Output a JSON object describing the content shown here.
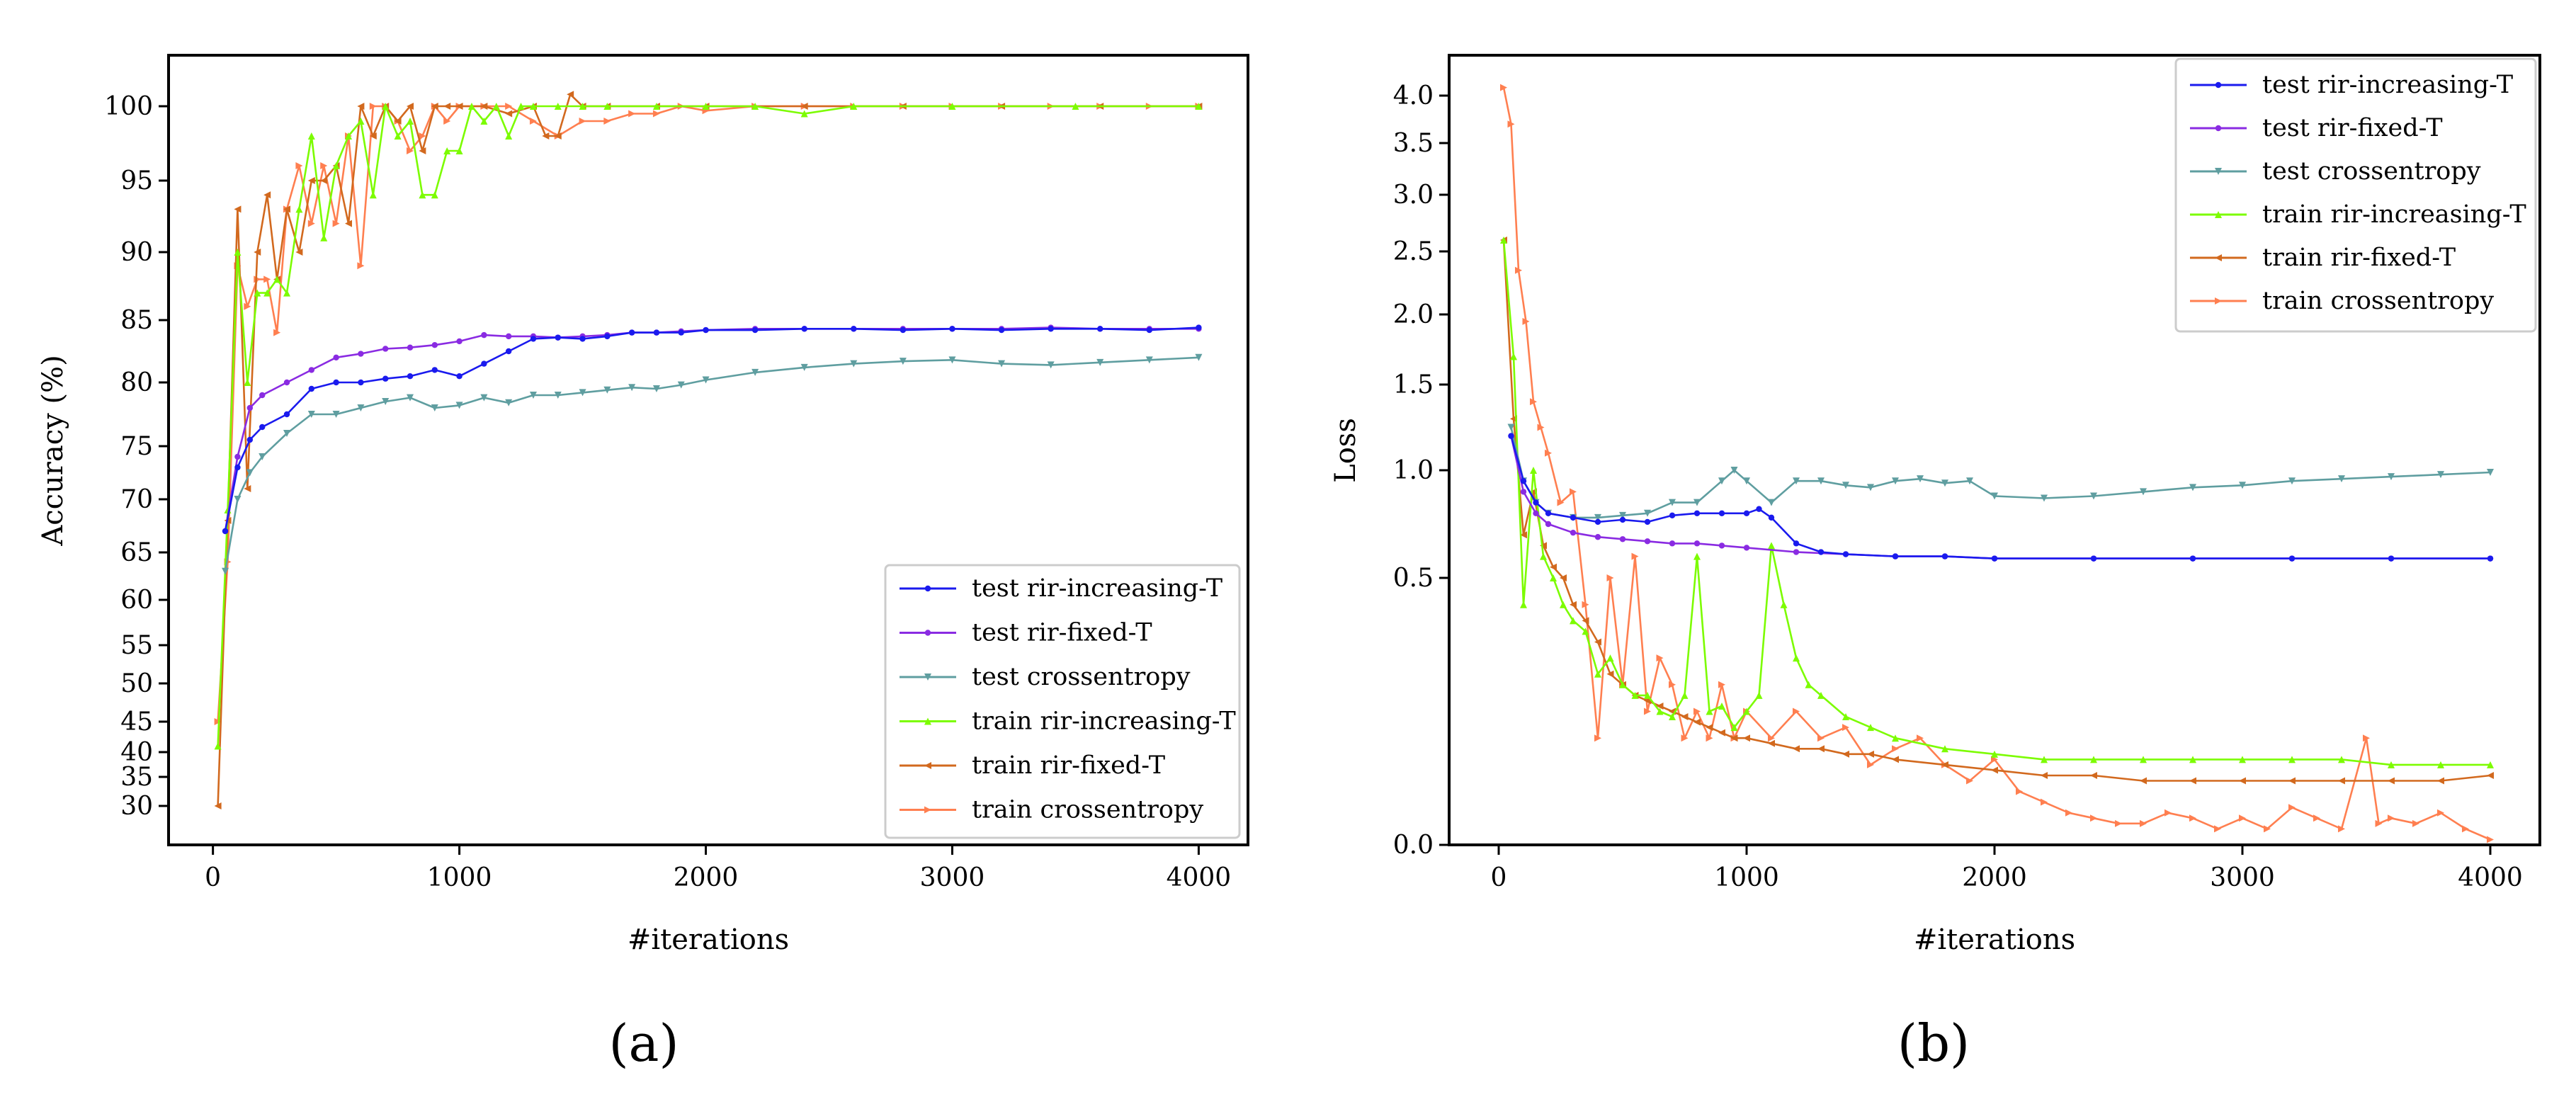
{
  "captions": [
    "(a)",
    "(b)"
  ],
  "colors": {
    "test_increasing": "#1a1aee",
    "test_fixed": "#8a2be2",
    "test_ce": "#5f9ea0",
    "train_increasing": "#7cfc00",
    "train_fixed": "#d2691e",
    "train_ce": "#ff7f50"
  },
  "chart_data": [
    {
      "type": "line",
      "panel": "(a)",
      "xlabel": "#iterations",
      "ylabel": "Accuracy (%)",
      "xlim": [
        -180,
        4200
      ],
      "ylim": [
        26.5,
        104.3
      ],
      "x_ticks": [
        0,
        1000,
        2000,
        3000,
        4000
      ],
      "x_tick_labels": [
        "0",
        "1000",
        "2000",
        "3000",
        "4000"
      ],
      "y_ticks": [
        30,
        35,
        40,
        45,
        50,
        55,
        60,
        65,
        70,
        75,
        80,
        85,
        90,
        95,
        100
      ],
      "y_tick_labels": [
        "30",
        "35",
        "40",
        "45",
        "50",
        "55",
        "60",
        "65",
        "70",
        "75",
        "80",
        "85",
        "90",
        "95",
        "100"
      ],
      "y_scale": "nonlinear (compressed below 65)",
      "legend_position": "lower-right",
      "series": [
        {
          "name": "test rir-increasing-T",
          "color_key": "test_increasing",
          "marker": "dot",
          "x": [
            50,
            100,
            150,
            200,
            300,
            400,
            500,
            600,
            700,
            800,
            900,
            1000,
            1100,
            1200,
            1300,
            1400,
            1500,
            1600,
            1700,
            1800,
            1900,
            2000,
            2200,
            2400,
            2600,
            2800,
            3000,
            3200,
            3400,
            3600,
            3800,
            4000
          ],
          "y": [
            67,
            73,
            75.5,
            76.5,
            77.5,
            79.5,
            80,
            80,
            80.3,
            80.5,
            81,
            80.5,
            81.5,
            82.5,
            83.5,
            83.6,
            83.5,
            83.7,
            84,
            84,
            84,
            84.2,
            84.2,
            84.3,
            84.3,
            84.2,
            84.3,
            84.2,
            84.3,
            84.3,
            84.2,
            84.4
          ]
        },
        {
          "name": "test rir-fixed-T",
          "color_key": "test_fixed",
          "marker": "dot",
          "x": [
            50,
            100,
            150,
            200,
            300,
            400,
            500,
            600,
            700,
            800,
            900,
            1000,
            1100,
            1200,
            1300,
            1400,
            1500,
            1600,
            1700,
            1800,
            1900,
            2000,
            2200,
            2400,
            2600,
            2800,
            3000,
            3200,
            3400,
            3600,
            3800,
            4000
          ],
          "y": [
            67,
            74,
            78,
            79,
            80,
            81,
            82,
            82.3,
            82.7,
            82.8,
            83,
            83.3,
            83.8,
            83.7,
            83.7,
            83.6,
            83.7,
            83.8,
            84,
            84,
            84.1,
            84.2,
            84.3,
            84.3,
            84.3,
            84.3,
            84.3,
            84.3,
            84.4,
            84.3,
            84.3,
            84.3
          ]
        },
        {
          "name": "test crossentropy",
          "color_key": "test_ce",
          "marker": "triangle-down",
          "x": [
            50,
            100,
            150,
            200,
            300,
            400,
            500,
            600,
            700,
            800,
            900,
            1000,
            1100,
            1200,
            1300,
            1400,
            1500,
            1600,
            1700,
            1800,
            1900,
            2000,
            2200,
            2400,
            2600,
            2800,
            3000,
            3200,
            3400,
            3600,
            3800,
            4000
          ],
          "y": [
            63,
            70,
            72.5,
            74,
            76,
            77.5,
            77.5,
            78,
            78.5,
            78.8,
            78,
            78.2,
            78.8,
            78.4,
            79,
            79,
            79.2,
            79.4,
            79.6,
            79.5,
            79.8,
            80.2,
            80.8,
            81.2,
            81.5,
            81.7,
            81.8,
            81.5,
            81.4,
            81.6,
            81.8,
            82
          ]
        },
        {
          "name": "train rir-increasing-T",
          "color_key": "train_increasing",
          "marker": "triangle-up",
          "x": [
            20,
            60,
            100,
            140,
            180,
            220,
            260,
            300,
            350,
            400,
            450,
            500,
            550,
            600,
            650,
            700,
            750,
            800,
            850,
            900,
            950,
            1000,
            1050,
            1100,
            1150,
            1200,
            1250,
            1300,
            1400,
            1500,
            1600,
            1800,
            2000,
            2200,
            2400,
            2600,
            3000,
            3500,
            4000
          ],
          "y": [
            41,
            69,
            90,
            80,
            87,
            87,
            88,
            87,
            93,
            98,
            91,
            96,
            98,
            99,
            94,
            100,
            98,
            99,
            94,
            94,
            97,
            97,
            100,
            99,
            100,
            98,
            100,
            100,
            100,
            100,
            100,
            100,
            100,
            100,
            99.5,
            100,
            100,
            100,
            100
          ]
        },
        {
          "name": "train rir-fixed-T",
          "color_key": "train_fixed",
          "marker": "triangle-left",
          "x": [
            20,
            60,
            100,
            140,
            180,
            220,
            260,
            300,
            350,
            400,
            450,
            500,
            550,
            600,
            650,
            700,
            750,
            800,
            850,
            900,
            950,
            1000,
            1100,
            1200,
            1300,
            1350,
            1400,
            1450,
            1500,
            1600,
            1800,
            2000,
            2400,
            2800,
            3200,
            3600,
            4000
          ],
          "y": [
            30,
            68,
            93,
            71,
            90,
            94,
            88,
            93,
            90,
            95,
            95,
            96,
            92,
            100,
            98,
            100,
            99,
            100,
            97,
            100,
            100,
            100,
            100,
            99.5,
            100,
            98,
            98,
            101,
            100,
            100,
            100,
            100,
            100,
            100,
            100,
            100,
            100
          ]
        },
        {
          "name": "train crossentropy",
          "color_key": "train_ce",
          "marker": "triangle-right",
          "x": [
            20,
            60,
            100,
            140,
            180,
            220,
            260,
            300,
            350,
            400,
            450,
            500,
            550,
            600,
            650,
            700,
            750,
            800,
            850,
            900,
            950,
            1000,
            1100,
            1200,
            1300,
            1400,
            1500,
            1600,
            1700,
            1800,
            1900,
            2000,
            2200,
            2400,
            2600,
            2800,
            3000,
            3200,
            3400,
            3600,
            3800,
            4000
          ],
          "y": [
            45,
            64,
            89,
            86,
            88,
            88,
            84,
            93,
            96,
            92,
            96,
            92,
            98,
            89,
            100,
            100,
            99,
            97,
            98,
            100,
            99,
            100,
            100,
            100,
            99,
            98,
            99,
            99,
            99.5,
            99.5,
            100,
            99.7,
            100,
            100,
            100,
            100,
            100,
            100,
            100,
            100,
            100,
            100
          ]
        }
      ]
    },
    {
      "type": "line",
      "panel": "(b)",
      "xlabel": "#iterations",
      "ylabel": "Loss",
      "xlim": [
        -200,
        4200
      ],
      "ylim": [
        0,
        4.25
      ],
      "x_ticks": [
        0,
        1000,
        2000,
        3000,
        4000
      ],
      "x_tick_labels": [
        "0",
        "1000",
        "2000",
        "3000",
        "4000"
      ],
      "y_ticks": [
        0.0,
        0.5,
        1.0,
        1.5,
        2.0,
        2.5,
        3.0,
        3.5,
        4.0
      ],
      "y_tick_labels": [
        "0.0",
        "0.5",
        "1.0",
        "1.5",
        "2.0",
        "2.5",
        "3.0",
        "3.5",
        "4.0"
      ],
      "y_scale": "nonlinear (compressed below 1.0)",
      "legend_position": "top-right",
      "series": [
        {
          "name": "test rir-increasing-T",
          "color_key": "test_increasing",
          "marker": "dot",
          "x": [
            50,
            100,
            150,
            200,
            300,
            400,
            500,
            600,
            700,
            800,
            900,
            1000,
            1050,
            1100,
            1200,
            1300,
            1400,
            1600,
            1800,
            2000,
            2400,
            2800,
            3200,
            3600,
            4000
          ],
          "y": [
            1.2,
            0.95,
            0.85,
            0.8,
            0.78,
            0.76,
            0.77,
            0.76,
            0.79,
            0.8,
            0.8,
            0.8,
            0.82,
            0.78,
            0.66,
            0.62,
            0.61,
            0.6,
            0.6,
            0.59,
            0.59,
            0.59,
            0.59,
            0.59,
            0.59
          ]
        },
        {
          "name": "test rir-fixed-T",
          "color_key": "test_fixed",
          "marker": "dot",
          "x": [
            50,
            100,
            150,
            200,
            300,
            400,
            500,
            600,
            700,
            800,
            900,
            1000,
            1200,
            1400,
            1600,
            1800,
            2000,
            2400,
            2800,
            3200,
            3600,
            4000
          ],
          "y": [
            1.2,
            0.9,
            0.8,
            0.75,
            0.71,
            0.69,
            0.68,
            0.67,
            0.66,
            0.66,
            0.65,
            0.64,
            0.62,
            0.61,
            0.6,
            0.6,
            0.59,
            0.59,
            0.59,
            0.59,
            0.59,
            0.59
          ]
        },
        {
          "name": "test crossentropy",
          "color_key": "test_ce",
          "marker": "triangle-down",
          "x": [
            50,
            100,
            150,
            200,
            300,
            400,
            500,
            600,
            700,
            800,
            900,
            950,
            1000,
            1100,
            1200,
            1300,
            1400,
            1500,
            1600,
            1700,
            1800,
            1900,
            2000,
            2200,
            2400,
            2600,
            2800,
            3000,
            3200,
            3400,
            3600,
            3800,
            4000
          ],
          "y": [
            1.25,
            0.95,
            0.85,
            0.8,
            0.78,
            0.78,
            0.79,
            0.8,
            0.85,
            0.85,
            0.95,
            1.0,
            0.95,
            0.85,
            0.95,
            0.95,
            0.93,
            0.92,
            0.95,
            0.96,
            0.94,
            0.95,
            0.88,
            0.87,
            0.88,
            0.9,
            0.92,
            0.93,
            0.95,
            0.96,
            0.97,
            0.98,
            0.99
          ]
        },
        {
          "name": "train rir-increasing-T",
          "color_key": "train_increasing",
          "marker": "triangle-up",
          "x": [
            20,
            60,
            100,
            140,
            180,
            220,
            260,
            300,
            350,
            400,
            450,
            500,
            550,
            600,
            650,
            700,
            750,
            800,
            850,
            900,
            950,
            1000,
            1050,
            1100,
            1150,
            1200,
            1250,
            1300,
            1400,
            1500,
            1600,
            1800,
            2000,
            2200,
            2400,
            2600,
            2800,
            3000,
            3200,
            3400,
            3600,
            3800,
            4000
          ],
          "y": [
            2.6,
            1.7,
            0.45,
            1.0,
            0.6,
            0.5,
            0.45,
            0.42,
            0.4,
            0.32,
            0.35,
            0.3,
            0.28,
            0.28,
            0.25,
            0.24,
            0.28,
            0.6,
            0.25,
            0.26,
            0.22,
            0.25,
            0.28,
            0.65,
            0.45,
            0.35,
            0.3,
            0.28,
            0.24,
            0.22,
            0.2,
            0.18,
            0.17,
            0.16,
            0.16,
            0.16,
            0.16,
            0.16,
            0.16,
            0.16,
            0.15,
            0.15,
            0.15
          ]
        },
        {
          "name": "train rir-fixed-T",
          "color_key": "train_fixed",
          "marker": "triangle-left",
          "x": [
            20,
            60,
            100,
            140,
            180,
            220,
            260,
            300,
            350,
            400,
            450,
            500,
            550,
            600,
            650,
            700,
            750,
            800,
            850,
            900,
            950,
            1000,
            1100,
            1200,
            1300,
            1400,
            1500,
            1600,
            1800,
            2000,
            2200,
            2400,
            2600,
            2800,
            3000,
            3200,
            3400,
            3600,
            3800,
            4000
          ],
          "y": [
            2.6,
            1.3,
            0.7,
            0.9,
            0.65,
            0.55,
            0.5,
            0.45,
            0.42,
            0.38,
            0.32,
            0.3,
            0.28,
            0.27,
            0.26,
            0.25,
            0.24,
            0.23,
            0.22,
            0.21,
            0.2,
            0.2,
            0.19,
            0.18,
            0.18,
            0.17,
            0.17,
            0.16,
            0.15,
            0.14,
            0.13,
            0.13,
            0.12,
            0.12,
            0.12,
            0.12,
            0.12,
            0.12,
            0.12,
            0.13
          ]
        },
        {
          "name": "train crossentropy",
          "color_key": "train_ce",
          "marker": "triangle-right",
          "x": [
            20,
            50,
            80,
            110,
            140,
            170,
            200,
            250,
            300,
            350,
            400,
            450,
            500,
            550,
            600,
            650,
            700,
            750,
            800,
            850,
            900,
            950,
            1000,
            1100,
            1200,
            1300,
            1400,
            1500,
            1600,
            1700,
            1800,
            1900,
            2000,
            2100,
            2200,
            2300,
            2400,
            2500,
            2600,
            2700,
            2800,
            2900,
            3000,
            3100,
            3200,
            3300,
            3400,
            3500,
            3550,
            3600,
            3700,
            3800,
            3900,
            4000
          ],
          "y": [
            4.05,
            3.7,
            2.35,
            1.95,
            1.4,
            1.25,
            1.1,
            0.85,
            0.9,
            0.45,
            0.2,
            0.5,
            0.3,
            0.6,
            0.25,
            0.35,
            0.3,
            0.2,
            0.25,
            0.2,
            0.3,
            0.2,
            0.25,
            0.2,
            0.25,
            0.2,
            0.22,
            0.15,
            0.18,
            0.2,
            0.15,
            0.12,
            0.16,
            0.1,
            0.08,
            0.06,
            0.05,
            0.04,
            0.04,
            0.06,
            0.05,
            0.03,
            0.05,
            0.03,
            0.07,
            0.05,
            0.03,
            0.2,
            0.04,
            0.05,
            0.04,
            0.06,
            0.03,
            0.01
          ]
        }
      ]
    }
  ]
}
